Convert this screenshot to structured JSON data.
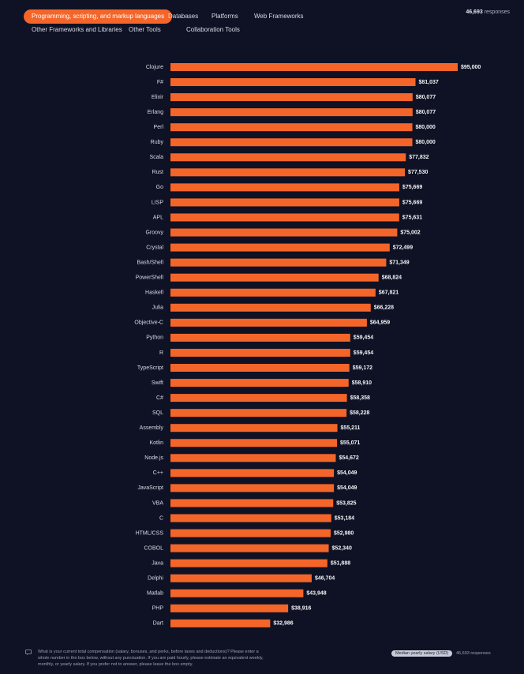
{
  "tabs": [
    {
      "label": "Programming, scripting, and markup languages",
      "active": true
    },
    {
      "label": "Databases",
      "active": false
    },
    {
      "label": "Platforms",
      "active": false
    },
    {
      "label": "Web Frameworks",
      "active": false
    },
    {
      "label": "Other Frameworks and Libraries",
      "active": false
    },
    {
      "label": "Other Tools",
      "active": false
    },
    {
      "label": "Collaboration Tools",
      "active": false
    }
  ],
  "responses": {
    "count": "46,693",
    "label": "responses"
  },
  "colors": {
    "bar": "#f4652a",
    "background": "#0f1224",
    "accent": "#f4652a"
  },
  "chart_data": {
    "type": "bar",
    "orientation": "horizontal",
    "categories": [
      "Clojure",
      "F#",
      "Elixir",
      "Erlang",
      "Perl",
      "Ruby",
      "Scala",
      "Rust",
      "Go",
      "LISP",
      "APL",
      "Groovy",
      "Crystal",
      "Bash/Shell",
      "PowerShell",
      "Haskell",
      "Julia",
      "Objective-C",
      "Python",
      "R",
      "TypeScript",
      "Swift",
      "C#",
      "SQL",
      "Assembly",
      "Kotlin",
      "Node.js",
      "C++",
      "JavaScript",
      "VBA",
      "C",
      "HTML/CSS",
      "COBOL",
      "Java",
      "Delphi",
      "Matlab",
      "PHP",
      "Dart"
    ],
    "values": [
      95000,
      81037,
      80077,
      80077,
      80000,
      80000,
      77832,
      77530,
      75669,
      75669,
      75631,
      75002,
      72499,
      71349,
      68824,
      67821,
      66228,
      64959,
      59454,
      59454,
      59172,
      58910,
      58358,
      58228,
      55211,
      55071,
      54672,
      54049,
      54049,
      53825,
      53184,
      52980,
      52340,
      51888,
      46704,
      43948,
      38916,
      32986
    ],
    "value_labels": [
      "$95,000",
      "$81,037",
      "$80,077",
      "$80,077",
      "$80,000",
      "$80,000",
      "$77,832",
      "$77,530",
      "$75,669",
      "$75,669",
      "$75,631",
      "$75,002",
      "$72,499",
      "$71,349",
      "$68,824",
      "$67,821",
      "$66,228",
      "$64,959",
      "$59,454",
      "$59,454",
      "$59,172",
      "$58,910",
      "$58,358",
      "$58,228",
      "$55,211",
      "$55,071",
      "$54,672",
      "$54,049",
      "$54,049",
      "$53,825",
      "$53,184",
      "$52,980",
      "$52,340",
      "$51,888",
      "$46,704",
      "$43,948",
      "$38,916",
      "$32,986"
    ],
    "xlim": [
      0,
      95000
    ],
    "grid": false,
    "legend": "none"
  },
  "footer": {
    "question": "What is your current total compensation (salary, bonuses, and perks, before taxes and deductions)? Please enter a whole number in the box below, without any punctuation. If you are paid hourly, please estimate an equivalent weekly, monthly, or yearly salary. If you prefer not to answer, please leave the box empty.",
    "badge": "Median yearly salary (USD)",
    "responses": "46,693 responses"
  }
}
